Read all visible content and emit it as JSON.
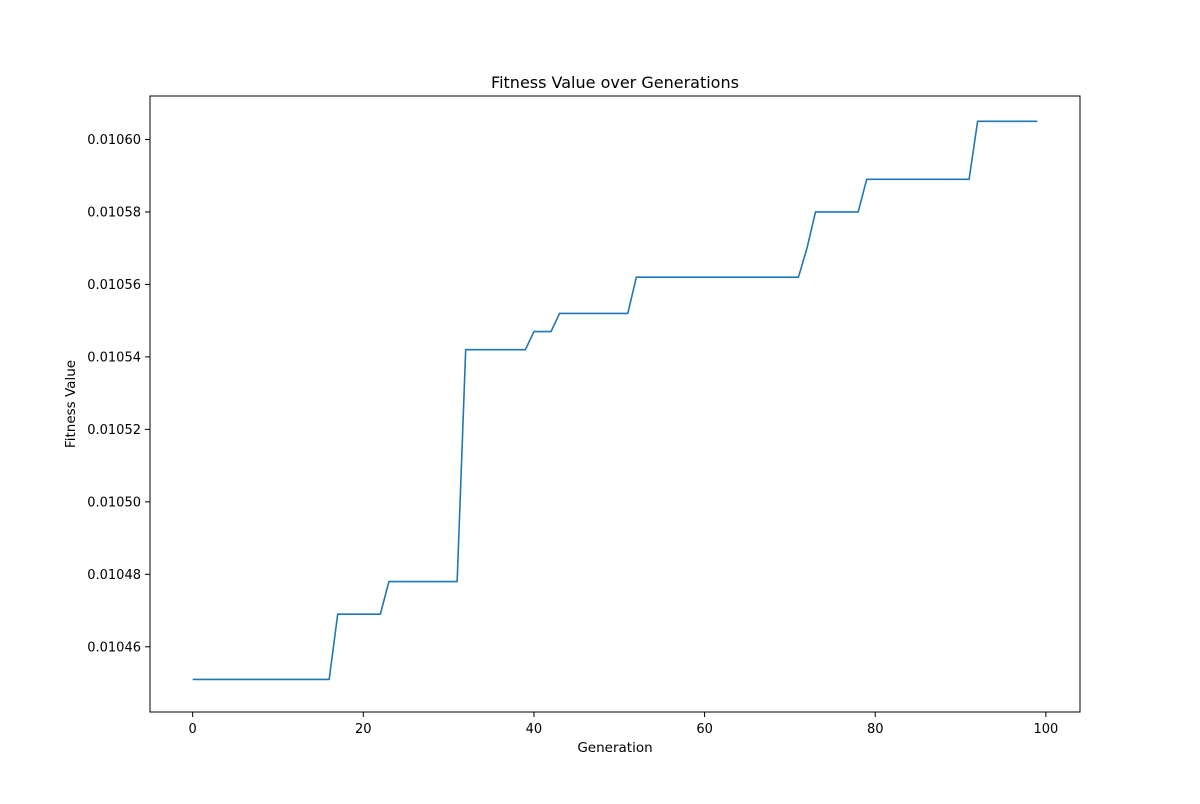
{
  "chart_data": {
    "type": "line",
    "title": "Fitness Value over Generations",
    "xlabel": "Generation",
    "ylabel": "Fitness Value",
    "xlim": [
      -5,
      104
    ],
    "ylim": [
      0.010442,
      0.010612
    ],
    "x_ticks": [
      0,
      20,
      40,
      60,
      80,
      100
    ],
    "y_ticks": [
      0.01046,
      0.01048,
      0.0105,
      0.01052,
      0.01054,
      0.01056,
      0.01058,
      0.0106
    ],
    "y_tick_labels": [
      "0.01046",
      "0.01048",
      "0.01050",
      "0.01052",
      "0.01054",
      "0.01056",
      "0.01058",
      "0.01060"
    ],
    "grid": false,
    "colors": {
      "series": "#1f77b4"
    },
    "series": [
      {
        "x": [
          0,
          1,
          2,
          3,
          4,
          5,
          6,
          7,
          8,
          9,
          10,
          11,
          12,
          13,
          14,
          15,
          16,
          17,
          18,
          19,
          20,
          21,
          22,
          23,
          24,
          25,
          26,
          27,
          28,
          29,
          30,
          31,
          32,
          33,
          34,
          35,
          36,
          37,
          38,
          39,
          40,
          41,
          42,
          43,
          44,
          45,
          46,
          47,
          48,
          49,
          50,
          51,
          52,
          53,
          54,
          55,
          56,
          57,
          58,
          59,
          60,
          61,
          62,
          63,
          64,
          65,
          66,
          67,
          68,
          69,
          70,
          71,
          72,
          73,
          74,
          75,
          76,
          77,
          78,
          79,
          80,
          81,
          82,
          83,
          84,
          85,
          86,
          87,
          88,
          89,
          90,
          91,
          92,
          93,
          94,
          95,
          96,
          97,
          98,
          99
        ],
        "y": [
          0.010451,
          0.010451,
          0.010451,
          0.010451,
          0.010451,
          0.010451,
          0.010451,
          0.010451,
          0.010451,
          0.010451,
          0.010451,
          0.010451,
          0.010451,
          0.010451,
          0.010451,
          0.010451,
          0.010451,
          0.010469,
          0.010469,
          0.010469,
          0.010469,
          0.010469,
          0.010469,
          0.010478,
          0.010478,
          0.010478,
          0.010478,
          0.010478,
          0.010478,
          0.010478,
          0.010478,
          0.010478,
          0.010542,
          0.010542,
          0.010542,
          0.010542,
          0.010542,
          0.010542,
          0.010542,
          0.010542,
          0.010547,
          0.010547,
          0.010547,
          0.010552,
          0.010552,
          0.010552,
          0.010552,
          0.010552,
          0.010552,
          0.010552,
          0.010552,
          0.010552,
          0.010562,
          0.010562,
          0.010562,
          0.010562,
          0.010562,
          0.010562,
          0.010562,
          0.010562,
          0.010562,
          0.010562,
          0.010562,
          0.010562,
          0.010562,
          0.010562,
          0.010562,
          0.010562,
          0.010562,
          0.010562,
          0.010562,
          0.010562,
          0.01057,
          0.01058,
          0.01058,
          0.01058,
          0.01058,
          0.01058,
          0.01058,
          0.010589,
          0.010589,
          0.010589,
          0.010589,
          0.010589,
          0.010589,
          0.010589,
          0.010589,
          0.010589,
          0.010589,
          0.010589,
          0.010589,
          0.010589,
          0.010605,
          0.010605,
          0.010605,
          0.010605,
          0.010605,
          0.010605,
          0.010605,
          0.010605
        ]
      }
    ]
  }
}
